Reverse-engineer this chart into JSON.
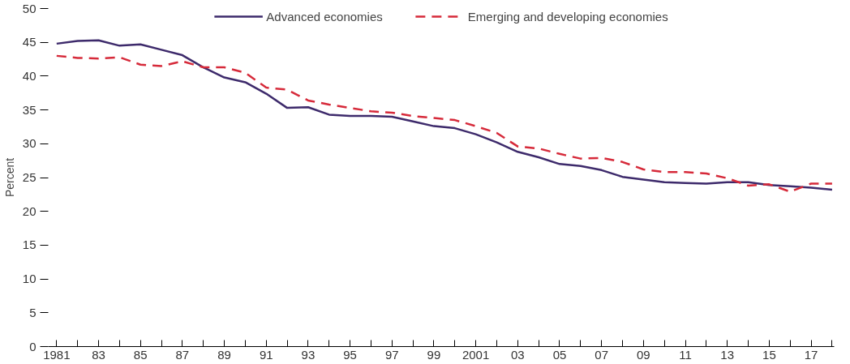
{
  "chart_data": {
    "type": "line",
    "ylabel": "Percent",
    "x": [
      1981,
      1982,
      1983,
      1984,
      1985,
      1986,
      1987,
      1988,
      1989,
      1990,
      1991,
      1992,
      1993,
      1994,
      1995,
      1996,
      1997,
      1998,
      1999,
      2000,
      2001,
      2002,
      2003,
      2004,
      2005,
      2006,
      2007,
      2008,
      2009,
      2010,
      2011,
      2012,
      2013,
      2014,
      2015,
      2016,
      2017,
      2018
    ],
    "series": [
      {
        "name": "Advanced economies",
        "color": "#3d2a6b",
        "line_style": "solid",
        "values": [
          44.8,
          45.2,
          45.3,
          44.5,
          44.7,
          43.9,
          43.1,
          41.3,
          39.8,
          39.1,
          37.4,
          35.3,
          35.4,
          34.3,
          34.1,
          34.1,
          34.0,
          33.3,
          32.6,
          32.3,
          31.4,
          30.2,
          28.8,
          28.0,
          27.0,
          26.7,
          26.1,
          25.1,
          24.7,
          24.3,
          24.2,
          24.1,
          24.3,
          24.3,
          23.9,
          23.7,
          23.5,
          23.2
        ]
      },
      {
        "name": "Emerging and developing economies",
        "color": "#d62a3a",
        "line_style": "dashed",
        "values": [
          43.0,
          42.7,
          42.6,
          42.8,
          41.7,
          41.5,
          42.2,
          41.3,
          41.3,
          40.5,
          38.3,
          38.0,
          36.4,
          35.8,
          35.3,
          34.8,
          34.6,
          34.1,
          33.8,
          33.5,
          32.6,
          31.6,
          29.6,
          29.3,
          28.5,
          27.8,
          27.9,
          27.3,
          26.2,
          25.8,
          25.8,
          25.6,
          24.9,
          23.8,
          24.0,
          22.9,
          24.1,
          24.1
        ]
      }
    ],
    "xlim": [
      1980.6,
      2018.1
    ],
    "xticks": [
      {
        "value": 1981,
        "label": "1981"
      },
      {
        "value": 1982,
        "label": null
      },
      {
        "value": 1983,
        "label": "83"
      },
      {
        "value": 1984,
        "label": null
      },
      {
        "value": 1985,
        "label": "85"
      },
      {
        "value": 1986,
        "label": null
      },
      {
        "value": 1987,
        "label": "87"
      },
      {
        "value": 1988,
        "label": null
      },
      {
        "value": 1989,
        "label": "89"
      },
      {
        "value": 1990,
        "label": null
      },
      {
        "value": 1991,
        "label": "91"
      },
      {
        "value": 1992,
        "label": null
      },
      {
        "value": 1993,
        "label": "93"
      },
      {
        "value": 1994,
        "label": null
      },
      {
        "value": 1995,
        "label": "95"
      },
      {
        "value": 1996,
        "label": null
      },
      {
        "value": 1997,
        "label": "97"
      },
      {
        "value": 1998,
        "label": null
      },
      {
        "value": 1999,
        "label": "99"
      },
      {
        "value": 2000,
        "label": null
      },
      {
        "value": 2001,
        "label": "2001"
      },
      {
        "value": 2002,
        "label": null
      },
      {
        "value": 2003,
        "label": "03"
      },
      {
        "value": 2004,
        "label": null
      },
      {
        "value": 2005,
        "label": "05"
      },
      {
        "value": 2006,
        "label": null
      },
      {
        "value": 2007,
        "label": "07"
      },
      {
        "value": 2008,
        "label": null
      },
      {
        "value": 2009,
        "label": "09"
      },
      {
        "value": 2010,
        "label": null
      },
      {
        "value": 2011,
        "label": "11"
      },
      {
        "value": 2012,
        "label": null
      },
      {
        "value": 2013,
        "label": "13"
      },
      {
        "value": 2014,
        "label": null
      },
      {
        "value": 2015,
        "label": "15"
      },
      {
        "value": 2016,
        "label": null
      },
      {
        "value": 2017,
        "label": "17"
      },
      {
        "value": 2018,
        "label": null
      }
    ],
    "ylim": [
      0,
      50
    ],
    "yticks": [
      0,
      5,
      10,
      15,
      20,
      25,
      30,
      35,
      40,
      45,
      50
    ],
    "grid": false,
    "legend": "top"
  }
}
